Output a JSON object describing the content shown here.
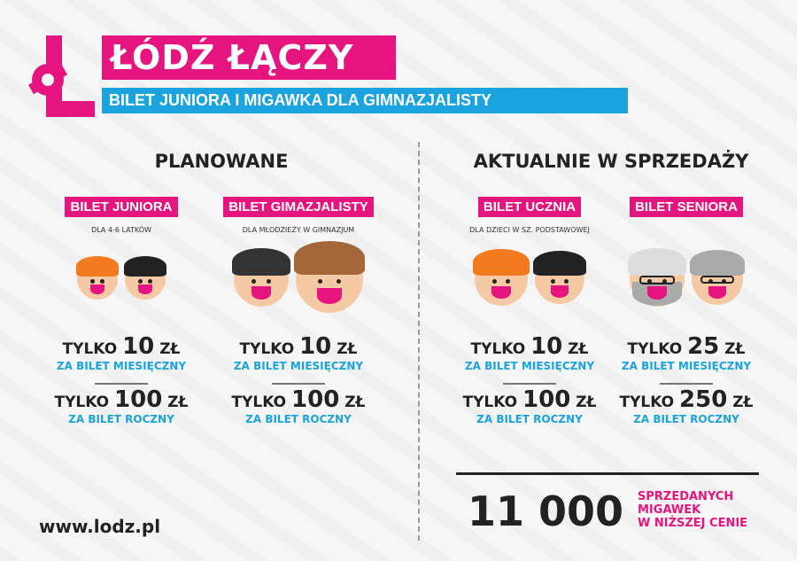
{
  "header": {
    "title": "ŁÓDŹ ŁĄCZY",
    "subtitle": "BILET JUNIORA I MIGAWKA DLA GIMNAZJALISTY",
    "logo": "Ł"
  },
  "sections": {
    "planned": "PLANOWANE",
    "current": "AKTUALNIE W SPRZEDAŻY"
  },
  "tickets": [
    {
      "name": "BILET JUNIORA",
      "desc": "DLA 4-6 LATKÓW",
      "prefix": "TYLKO",
      "monthly": "10",
      "yearly": "100",
      "currency": "ZŁ",
      "monthly_label": "ZA BILET MIESIĘCZNY",
      "yearly_label": "ZA BILET ROCZNY"
    },
    {
      "name": "BILET GIMAZJALISTY",
      "desc": "DLA MŁODZIEŻY W GIMNAZJUM",
      "prefix": "TYLKO",
      "monthly": "10",
      "yearly": "100",
      "currency": "ZŁ",
      "monthly_label": "ZA BILET MIESIĘCZNY",
      "yearly_label": "ZA BILET ROCZNY"
    },
    {
      "name": "BILET UCZNIA",
      "desc": "DLA DZIECI W SZ. PODSTAWOWEJ",
      "prefix": "TYLKO",
      "monthly": "10",
      "yearly": "100",
      "currency": "ZŁ",
      "monthly_label": "ZA BILET MIESIĘCZNY",
      "yearly_label": "ZA BILET ROCZNY"
    },
    {
      "name": "BILET SENIORA",
      "desc": "",
      "prefix": "TYLKO",
      "monthly": "25",
      "yearly": "250",
      "currency": "ZŁ",
      "monthly_label": "ZA BILET MIESIĘCZNY",
      "yearly_label": "ZA BILET ROCZNY"
    }
  ],
  "stats": {
    "count": "11 000",
    "label_1": "SPRZEDANYCH",
    "label_2": "MIGAWEK",
    "label_3": "W NIŻSZEJ CENIE"
  },
  "footer": {
    "url": "www.lodz.pl"
  },
  "colors": {
    "pink": "#e5147f",
    "blue": "#1aa3dc",
    "dark": "#222222"
  }
}
